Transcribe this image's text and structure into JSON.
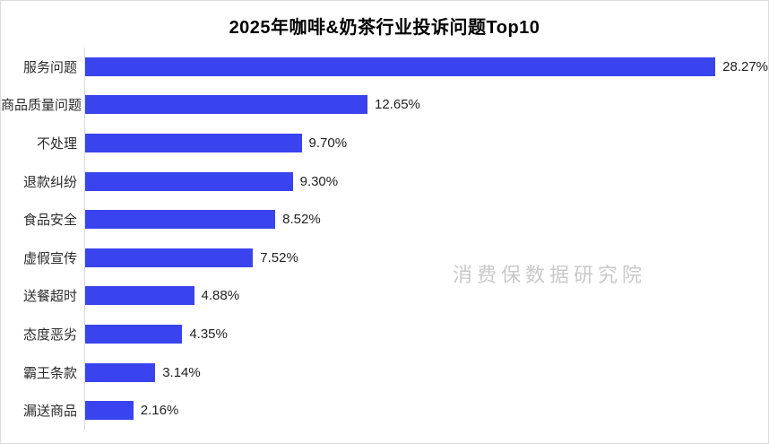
{
  "watermark": "消费保数据研究院",
  "colors": {
    "bar": "#3a44ee",
    "axis_line": "#d9d9d9",
    "card_border": "#dcdcdc",
    "title_text": "#000000",
    "label_text": "#2b2b2b",
    "watermark_text": "#c9c9c9"
  },
  "chart_data": {
    "type": "bar",
    "orientation": "horizontal",
    "title": "2025年咖啡&奶茶行业投诉问题Top10",
    "categories": [
      "服务问题",
      "商品质量问题",
      "不处理",
      "退款纠纷",
      "食品安全",
      "虚假宣传",
      "送餐超时",
      "态度恶劣",
      "霸王条款",
      "漏送商品"
    ],
    "values": [
      28.27,
      12.65,
      9.7,
      9.3,
      8.52,
      7.52,
      4.88,
      4.35,
      3.14,
      2.16
    ],
    "value_labels": [
      "28.27%",
      "12.65%",
      "9.70%",
      "9.30%",
      "8.52%",
      "7.52%",
      "4.88%",
      "4.35%",
      "3.14%",
      "2.16%"
    ],
    "xlabel": "",
    "ylabel": "",
    "xlim": [
      0,
      30.6
    ],
    "grid": false,
    "legend": false,
    "data_labels": "outside-end",
    "bar_color": "#3a44ee"
  }
}
